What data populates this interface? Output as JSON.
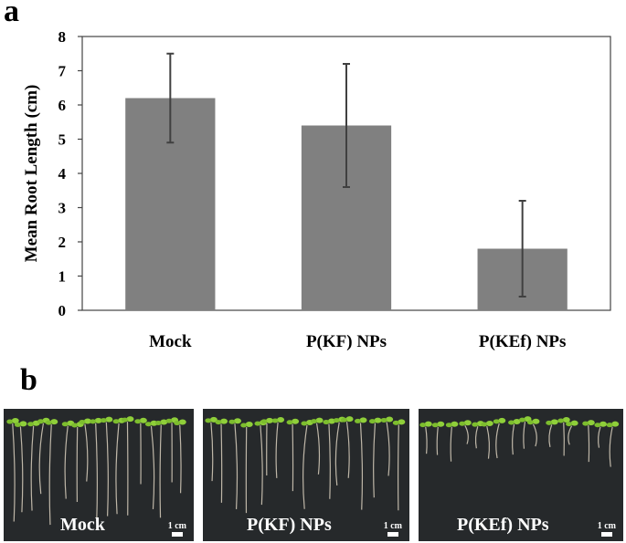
{
  "panel_a_label": "a",
  "panel_b_label": "b",
  "chart_data": {
    "type": "bar",
    "categories": [
      "Mock",
      "P(KF) NPs",
      "P(KEf) NPs"
    ],
    "values": [
      6.2,
      5.4,
      1.8
    ],
    "errors": [
      1.3,
      1.8,
      1.4
    ],
    "ylabel": "Mean Root Length (cm)",
    "xlabel": "",
    "ylim": [
      0,
      8
    ],
    "yticks": [
      0,
      1,
      2,
      3,
      4,
      5,
      6,
      7,
      8
    ],
    "bar_color": "#808080",
    "grid": false
  },
  "photos": [
    {
      "label": "Mock",
      "scale": "1 cm"
    },
    {
      "label": "P(KF) NPs",
      "scale": "1 cm"
    },
    {
      "label": "P(KEf) NPs",
      "scale": "1 cm"
    }
  ]
}
